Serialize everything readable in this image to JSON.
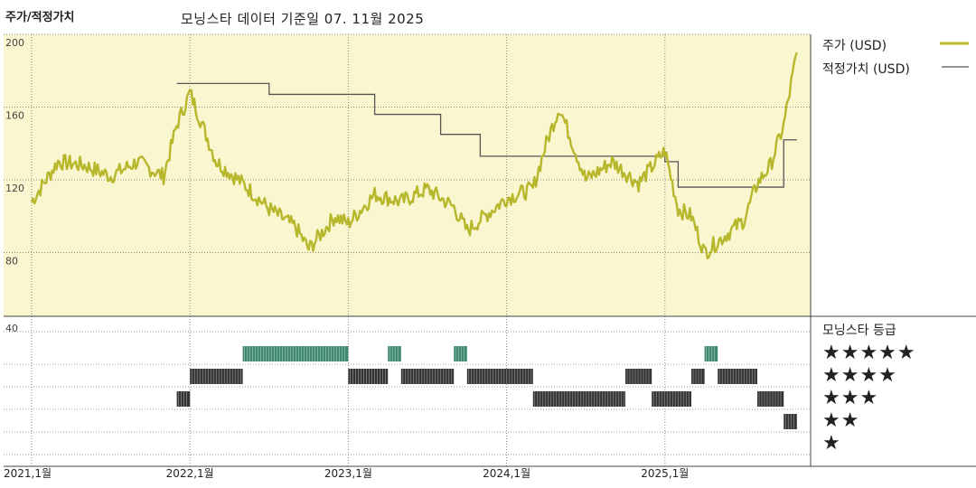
{
  "header": {
    "title": "주가/적정가치",
    "subtitle": "모닝스타 데이터 기준일 07. 11월 2025"
  },
  "legend": {
    "price": "주가 (USD)",
    "fair_value": "적정가치 (USD)"
  },
  "rating_panel": {
    "title": "모닝스타 등급",
    "stars": [
      "★★★★★",
      "★★★★",
      "★★★",
      "★★",
      "★"
    ]
  },
  "colors": {
    "price": "#b7b72c",
    "fair_value": "#555555",
    "upper_bg": "#faf6d0",
    "five_star": "#3f8a6f",
    "other_star": "#333333"
  },
  "chart_data": [
    {
      "type": "line",
      "title": "주가/적정가치",
      "x_tick_labels": [
        "2021,1월",
        "2022,1월",
        "2023,1월",
        "2024,1월",
        "2025,1월"
      ],
      "y_tick_labels": [
        "80",
        "120",
        "160",
        "200"
      ],
      "ylim": [
        45,
        200
      ],
      "grid": true,
      "legend_position": "top-right",
      "series": [
        {
          "name": "주가 (USD)",
          "x": [
            "2021-01",
            "2021-03",
            "2021-05",
            "2021-07",
            "2021-09",
            "2021-11",
            "2021-12",
            "2022-01",
            "2022-03",
            "2022-05",
            "2022-07",
            "2022-09",
            "2022-10",
            "2022-12",
            "2023-01",
            "2023-03",
            "2023-05",
            "2023-07",
            "2023-09",
            "2023-10",
            "2023-12",
            "2024-01",
            "2024-03",
            "2024-04",
            "2024-05",
            "2024-07",
            "2024-09",
            "2024-11",
            "2025-01",
            "2025-02",
            "2025-03",
            "2025-04",
            "2025-05",
            "2025-07",
            "2025-08",
            "2025-09",
            "2025-10",
            "2025-11"
          ],
          "values": [
            108,
            130,
            128,
            122,
            130,
            122,
            150,
            168,
            130,
            118,
            104,
            94,
            82,
            100,
            96,
            112,
            108,
            115,
            105,
            92,
            104,
            110,
            115,
            140,
            160,
            120,
            130,
            118,
            136,
            104,
            100,
            80,
            86,
            98,
            118,
            128,
            150,
            190
          ]
        },
        {
          "name": "적정가치 (USD)",
          "x": [
            "2021-12",
            "2022-07",
            "2023-03",
            "2023-08",
            "2023-11",
            "2024-05",
            "2024-12",
            "2025-01",
            "2025-02",
            "2025-09",
            "2025-10",
            "2025-11"
          ],
          "values": [
            173,
            167,
            156,
            145,
            133,
            133,
            133,
            130,
            116,
            116,
            142,
            142
          ]
        }
      ]
    },
    {
      "type": "timeline",
      "title": "모닝스타 등급",
      "y_tick_labels": [
        "40"
      ],
      "categories": [
        "★★★★★",
        "★★★★",
        "★★★",
        "★★",
        "★"
      ],
      "periods": [
        {
          "rating": 3,
          "start": "2021-12",
          "end": "2022-01"
        },
        {
          "rating": 4,
          "start": "2022-01",
          "end": "2022-05"
        },
        {
          "rating": 5,
          "start": "2022-05",
          "end": "2023-01"
        },
        {
          "rating": 4,
          "start": "2023-01",
          "end": "2023-04"
        },
        {
          "rating": 5,
          "start": "2023-04",
          "end": "2023-05"
        },
        {
          "rating": 4,
          "start": "2023-05",
          "end": "2023-09"
        },
        {
          "rating": 5,
          "start": "2023-09",
          "end": "2023-10"
        },
        {
          "rating": 4,
          "start": "2023-10",
          "end": "2024-03"
        },
        {
          "rating": 3,
          "start": "2024-03",
          "end": "2024-10"
        },
        {
          "rating": 4,
          "start": "2024-10",
          "end": "2024-12"
        },
        {
          "rating": 3,
          "start": "2024-12",
          "end": "2025-03"
        },
        {
          "rating": 4,
          "start": "2025-03",
          "end": "2025-04"
        },
        {
          "rating": 5,
          "start": "2025-04",
          "end": "2025-05"
        },
        {
          "rating": 4,
          "start": "2025-05",
          "end": "2025-08"
        },
        {
          "rating": 3,
          "start": "2025-08",
          "end": "2025-10"
        },
        {
          "rating": 2,
          "start": "2025-10",
          "end": "2025-11"
        }
      ]
    }
  ]
}
